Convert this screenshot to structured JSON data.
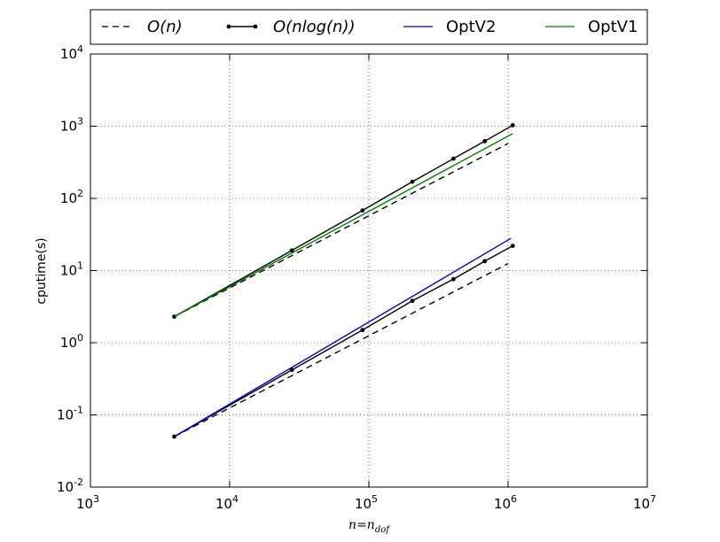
{
  "chart_data": {
    "type": "line",
    "xscale": "log",
    "yscale": "log",
    "xlim": [
      1000,
      10000000
    ],
    "ylim": [
      0.01,
      10000
    ],
    "grid": true,
    "legend_position": "top, outside, spanning width",
    "xlabel": {
      "base": "n=n",
      "sub": "dof"
    },
    "ylabel": "cputime(s)",
    "x_ticks": [
      {
        "value": 1000,
        "base": "10",
        "exp": "3"
      },
      {
        "value": 10000,
        "base": "10",
        "exp": "4"
      },
      {
        "value": 100000,
        "base": "10",
        "exp": "5"
      },
      {
        "value": 1000000,
        "base": "10",
        "exp": "6"
      },
      {
        "value": 10000000,
        "base": "10",
        "exp": "7"
      }
    ],
    "y_ticks": [
      {
        "value": 0.01,
        "base": "10",
        "exp": "-2"
      },
      {
        "value": 0.1,
        "base": "10",
        "exp": "-1"
      },
      {
        "value": 1,
        "base": "10",
        "exp": "0"
      },
      {
        "value": 10,
        "base": "10",
        "exp": "1"
      },
      {
        "value": 100,
        "base": "10",
        "exp": "2"
      },
      {
        "value": 1000,
        "base": "10",
        "exp": "3"
      },
      {
        "value": 10000,
        "base": "10",
        "exp": "4"
      }
    ],
    "legend": [
      {
        "label": "O(n)",
        "style": "dashed",
        "color": "#000000",
        "math": true
      },
      {
        "label": "O(nlog(n))",
        "style": "solid-marker",
        "color": "#000000",
        "math": true
      },
      {
        "label": "OptV2",
        "style": "solid",
        "color": "#0000cc",
        "math": false
      },
      {
        "label": "OptV1",
        "style": "solid",
        "color": "#008000",
        "math": false
      }
    ],
    "series": [
      {
        "name": "O(n)",
        "group": "upper",
        "style": "dashed",
        "color": "#000000",
        "x": [
          4000,
          1000000
        ],
        "y": [
          2.3,
          575
        ]
      },
      {
        "name": "O(nlog(n))",
        "group": "upper",
        "style": "solid-marker",
        "color": "#000000",
        "x": [
          4000,
          28000,
          90000,
          205000,
          405000,
          680000,
          1080000
        ],
        "y": [
          2.3,
          19,
          68,
          170,
          355,
          620,
          1030
        ]
      },
      {
        "name": "OptV1",
        "group": "upper",
        "style": "solid",
        "color": "#008000",
        "x": [
          4000,
          1080000
        ],
        "y": [
          2.3,
          790
        ]
      },
      {
        "name": "O(n)",
        "group": "lower",
        "style": "dashed",
        "color": "#000000",
        "x": [
          4000,
          1000000
        ],
        "y": [
          0.05,
          12.5
        ]
      },
      {
        "name": "O(nlog(n))",
        "group": "lower",
        "style": "solid-marker",
        "color": "#000000",
        "x": [
          4000,
          28000,
          90000,
          205000,
          405000,
          680000,
          1080000
        ],
        "y": [
          0.05,
          0.42,
          1.5,
          3.8,
          7.6,
          13.5,
          22
        ]
      },
      {
        "name": "OptV2",
        "group": "lower",
        "style": "solid",
        "color": "#0000cc",
        "x": [
          4000,
          1050000
        ],
        "y": [
          0.05,
          28
        ]
      }
    ]
  }
}
